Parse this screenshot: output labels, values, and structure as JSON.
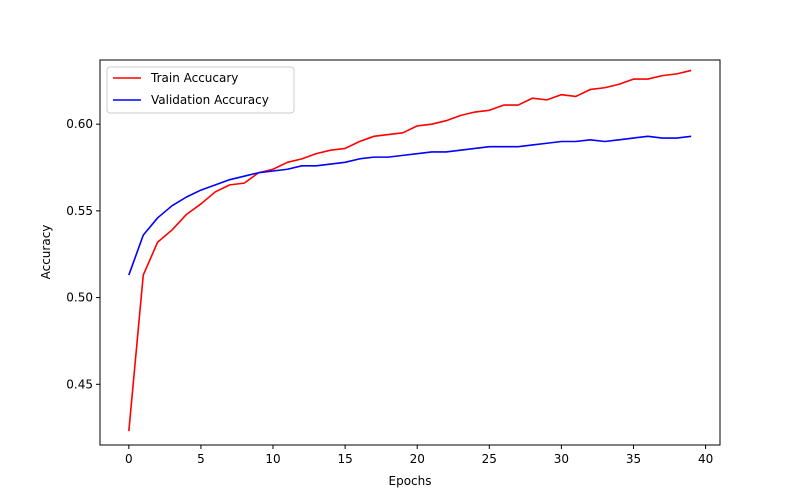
{
  "chart_data": {
    "type": "line",
    "title": "",
    "xlabel": "Epochs",
    "ylabel": "Accuracy",
    "xlim": [
      -2,
      41
    ],
    "ylim": [
      0.415,
      0.637
    ],
    "xticks": [
      0,
      5,
      10,
      15,
      20,
      25,
      30,
      35,
      40
    ],
    "xtick_labels": [
      "0",
      "5",
      "10",
      "15",
      "20",
      "25",
      "30",
      "35",
      "40"
    ],
    "yticks": [
      0.45,
      0.5,
      0.55,
      0.6
    ],
    "ytick_labels": [
      "0.45",
      "0.50",
      "0.55",
      "0.60"
    ],
    "grid": false,
    "legend_position": "top-left",
    "x": [
      0,
      1,
      2,
      3,
      4,
      5,
      6,
      7,
      8,
      9,
      10,
      11,
      12,
      13,
      14,
      15,
      16,
      17,
      18,
      19,
      20,
      21,
      22,
      23,
      24,
      25,
      26,
      27,
      28,
      29,
      30,
      31,
      32,
      33,
      34,
      35,
      36,
      37,
      38,
      39
    ],
    "series": [
      {
        "name": "Train Accucary",
        "color": "#ff0000",
        "values": [
          0.423,
          0.513,
          0.532,
          0.539,
          0.548,
          0.554,
          0.561,
          0.565,
          0.566,
          0.572,
          0.574,
          0.578,
          0.58,
          0.583,
          0.585,
          0.586,
          0.59,
          0.593,
          0.594,
          0.595,
          0.599,
          0.6,
          0.602,
          0.605,
          0.607,
          0.608,
          0.611,
          0.611,
          0.615,
          0.614,
          0.617,
          0.616,
          0.62,
          0.621,
          0.623,
          0.626,
          0.626,
          0.628,
          0.629,
          0.631
        ]
      },
      {
        "name": "Validation Accuracy",
        "color": "#0000ff",
        "values": [
          0.513,
          0.536,
          0.546,
          0.553,
          0.558,
          0.562,
          0.565,
          0.568,
          0.57,
          0.572,
          0.573,
          0.574,
          0.576,
          0.576,
          0.577,
          0.578,
          0.58,
          0.581,
          0.581,
          0.582,
          0.583,
          0.584,
          0.584,
          0.585,
          0.586,
          0.587,
          0.587,
          0.587,
          0.588,
          0.589,
          0.59,
          0.59,
          0.591,
          0.59,
          0.591,
          0.592,
          0.593,
          0.592,
          0.592,
          0.593
        ]
      }
    ]
  }
}
